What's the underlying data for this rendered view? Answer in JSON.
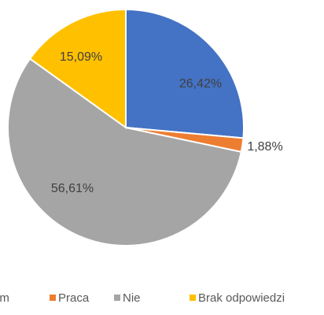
{
  "chart_data": {
    "type": "pie",
    "categories": [
      "em",
      "Praca",
      "Nie",
      "Brak odpowiedzi"
    ],
    "values": [
      26.42,
      1.88,
      56.61,
      15.09
    ],
    "value_labels": [
      "26,42%",
      "1,88%",
      "56,61%",
      "15,09%"
    ],
    "colors": [
      "#4472c4",
      "#ed7d31",
      "#a5a5a5",
      "#ffc000"
    ],
    "legend": "bottom"
  }
}
